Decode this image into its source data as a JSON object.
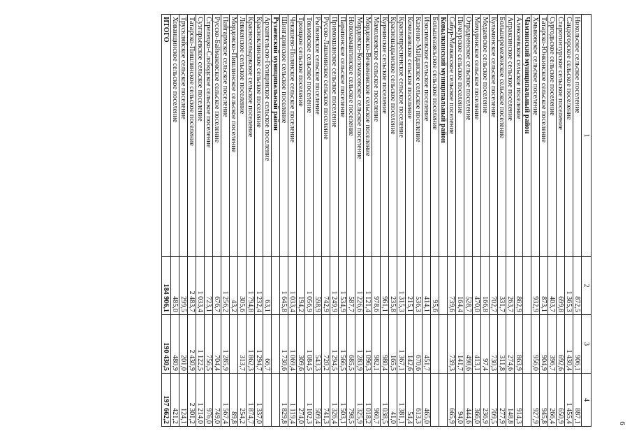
{
  "page_number": "6",
  "table": {
    "headers": [
      "1",
      "2",
      "3",
      "4"
    ],
    "rows": [
      {
        "type": "row",
        "name": "Никольское сельское поселение",
        "c2": "872,5",
        "c3": "906,1",
        "c4": "887,1"
      },
      {
        "type": "row",
        "name": "Сандогорское сельское поселение",
        "c2": "1 365,3",
        "c3": "1 430,4",
        "c4": "1 455,4"
      },
      {
        "type": "row",
        "name": "Старотинтурское сельское поселение",
        "c2": "699,8",
        "c3": "692,6",
        "c4": "650,9"
      },
      {
        "type": "row",
        "name": "Сургодьское сельское поселение",
        "c2": "403,7",
        "c3": "396,7",
        "c4": "266,4"
      },
      {
        "type": "row",
        "name": "Татарско-Юнкинское сельское поселение",
        "c2": "873,1",
        "c3": "904,9",
        "c4": "945,8"
      },
      {
        "type": "row",
        "name": "Хмыковское сельское поселение",
        "c2": "932,9",
        "c3": "956,0",
        "c4": "927,9"
      },
      {
        "type": "district",
        "name": "Чамзинский муниципальный район",
        "c2": "",
        "c3": "",
        "c4": ""
      },
      {
        "type": "row",
        "name": "Алексеевское сельское поселение",
        "c2": "862,9",
        "c3": "863,9",
        "c4": "914,3"
      },
      {
        "type": "row",
        "name": "Апраксинское сельское поселение",
        "c2": "263,7",
        "c3": "274,6",
        "c4": "148,8"
      },
      {
        "type": "row",
        "name": "Большеремезенское сельское поселение",
        "c2": "331,7",
        "c3": "311,8",
        "c4": "277,9"
      },
      {
        "type": "row",
        "name": "Кульминское сельское поселение",
        "c2": "702,7",
        "c3": "730,3",
        "c4": "709,5"
      },
      {
        "type": "row",
        "name": "Медаевское сельское поселение",
        "c2": "166,8",
        "c3": "97,4",
        "c4": "236,9"
      },
      {
        "type": "row",
        "name": "Мичуринское сельское поселение",
        "c2": "470,0",
        "c3": "413,1",
        "c4": "366,0"
      },
      {
        "type": "row",
        "name": "Отрадненское сельское поселение",
        "c2": "528,7",
        "c3": "498,6",
        "c4": "444,6"
      },
      {
        "type": "row",
        "name": "Пичеурское сельское поселение",
        "c2": "164,4",
        "c3": "141,7",
        "c4": "94,0"
      },
      {
        "type": "row",
        "name": "Сабур-Мачкасское сельское поселение",
        "c2": "739,6",
        "c3": "739,3",
        "c4": "665,9"
      },
      {
        "type": "district",
        "name": "Ковылкинский муниципальный район",
        "c2": "",
        "c3": "",
        "c4": ""
      },
      {
        "type": "row",
        "name": "Большеазясьское сельское поселение",
        "c2": "95,6",
        "c3": "",
        "c4": ""
      },
      {
        "type": "row",
        "name": "Изосимовское сельское поселение",
        "c2": "414,1",
        "c3": "451,7",
        "c4": "465,0"
      },
      {
        "type": "row",
        "name": "Казенно-Майданское сельское поселение",
        "c2": "536,3",
        "c3": "670,6",
        "c4": "613,3"
      },
      {
        "type": "row",
        "name": "Кочелаевское сельское поселение",
        "c2": "215,1",
        "c3": "142,6",
        "c4": "54,4"
      },
      {
        "type": "row",
        "name": "Краснопресненское сельское поселение",
        "c2": "1 315,3",
        "c3": "1 367,1",
        "c4": "1 381,1"
      },
      {
        "type": "row",
        "name": "Красношадымское сельское поселение",
        "c2": "235,8",
        "c3": "165,5",
        "c4": "41,0"
      },
      {
        "type": "row",
        "name": "Курнинское сельское поселение",
        "c2": "961,1",
        "c3": "980,4",
        "c4": "1 038,5"
      },
      {
        "type": "row",
        "name": "Мамолаевское сельское поселение",
        "c2": "978,6",
        "c3": "982,1",
        "c4": "960,7"
      },
      {
        "type": "row",
        "name": "Мордовско-Вечкенинское сельское поселение",
        "c2": "1 121,4",
        "c3": "1 096,3",
        "c4": "1 018,2"
      },
      {
        "type": "row",
        "name": "Мордовско-Коломасовское сельское поселение",
        "c2": "1 226,6",
        "c3": "1 283,9",
        "c4": "1 325,9"
      },
      {
        "type": "row",
        "name": "Новомамангинское сельское поселение",
        "c2": "587,7",
        "c3": "685,5",
        "c4": "798,5"
      },
      {
        "type": "row",
        "name": "Парапинское сельское поселение",
        "c2": "1 534,9",
        "c3": "1 566,5",
        "c4": "1 503,1"
      },
      {
        "type": "row",
        "name": "Примокшанское сельское поселение",
        "c2": "1 249,9",
        "c3": "1 294,5",
        "c4": "1 326,4"
      },
      {
        "type": "row",
        "name": "Русско-Лашминское сельское поселение",
        "c2": "742,9",
        "c3": "720,2",
        "c4": "741,3"
      },
      {
        "type": "row",
        "name": "Рыбкинское сельское поселение",
        "c2": "598,9",
        "c3": "543,3",
        "c4": "509,4"
      },
      {
        "type": "row",
        "name": "Токмовское сельское поселение",
        "c2": "1 056,9",
        "c3": "1 084,5",
        "c4": "1 102,3"
      },
      {
        "type": "row",
        "name": "Троицкое сельское поселение",
        "c2": "194,2",
        "c3": "309,6",
        "c4": "274,0"
      },
      {
        "type": "row",
        "name": "Чекашево-Полянское сельское поселение",
        "c2": "1 033,4",
        "c3": "1 069,4",
        "c4": "1 119,4"
      },
      {
        "type": "row",
        "name": "Шингаринское сельское поселение",
        "c2": "1 645,8",
        "c3": "1 730,6",
        "c4": "1 829,8"
      },
      {
        "type": "district",
        "name": "Рузаевский муниципальный район",
        "c2": "",
        "c3": "",
        "c4": ""
      },
      {
        "type": "row",
        "name": "Архангельско-Голицинское сельское поселение",
        "c2": "63,1",
        "c3": "66,7",
        "c4": ""
      },
      {
        "type": "row",
        "name": "Красноклинское сельское поселение",
        "c2": "1 232,4",
        "c3": "1 294,7",
        "c4": "1 337,0"
      },
      {
        "type": "row",
        "name": "Красносельцовское сельское поселение",
        "c2": "1 794,8",
        "c3": "1 862,3",
        "c4": "1 874,7"
      },
      {
        "type": "row",
        "name": "Левженское сельское поселение",
        "c2": "305,6",
        "c3": "313,7",
        "c4": "254,2"
      },
      {
        "type": "row",
        "name": "Мордовско-Пишлинское сельское поселение",
        "c2": "43,2",
        "c3": "",
        "c4": "89,8"
      },
      {
        "type": "row",
        "name": "Пайгармское сельское поселение",
        "c2": "1 256,2",
        "c3": "1 285,9",
        "c4": "1 567,4"
      },
      {
        "type": "row",
        "name": "Русско-Баймаковское сельское поселение",
        "c2": "676,7",
        "c3": "704,4",
        "c4": "749,0"
      },
      {
        "type": "row",
        "name": "Стрелецко-Слободское сельское поселение",
        "c2": "723,1",
        "c3": "756,5",
        "c4": "976,0"
      },
      {
        "type": "row",
        "name": "Сузгарьевское сельское поселение",
        "c2": "1 033,4",
        "c3": "1 122,5",
        "c4": "1 214,0"
      },
      {
        "type": "row",
        "name": "Татарско-Пишлинское сельское поселение",
        "c2": "2 483,7",
        "c3": "2 430,9",
        "c4": "2 301,2"
      },
      {
        "type": "row",
        "name": "Трускляйское сельское поселение",
        "c2": "299,5",
        "c3": "201,0",
        "c4": "124,1"
      },
      {
        "type": "row",
        "name": "Хованщинское сельское поселение",
        "c2": "485,0",
        "c3": "480,9",
        "c4": "421,2"
      },
      {
        "type": "total",
        "name": "ИТОГО",
        "c2": "184 906,1",
        "c3": "190 430,5",
        "c4": "197 662,2"
      }
    ]
  }
}
